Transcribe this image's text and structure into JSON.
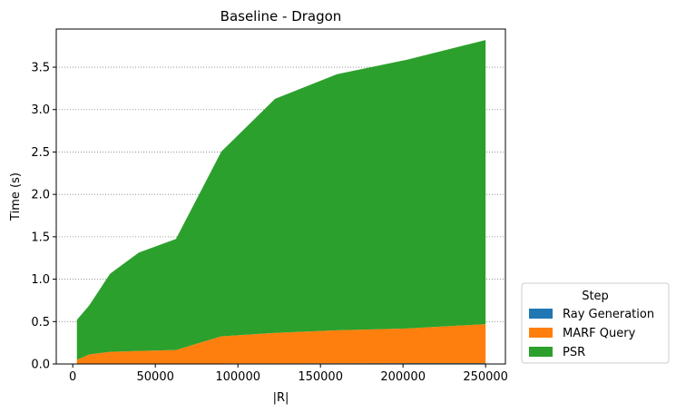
{
  "chart_data": {
    "type": "area",
    "stacked": true,
    "title": "Baseline - Dragon",
    "xlabel": "|R|",
    "ylabel": "Time (s)",
    "xlim": [
      -10000,
      262000
    ],
    "ylim": [
      0,
      3.95
    ],
    "xticks": [
      0,
      50000,
      100000,
      150000,
      200000,
      250000
    ],
    "yticks": [
      0.0,
      0.5,
      1.0,
      1.5,
      2.0,
      2.5,
      3.0,
      3.5
    ],
    "xtick_labels": [
      "0",
      "50000",
      "100000",
      "150000",
      "200000",
      "250000"
    ],
    "ytick_labels": [
      "0.0",
      "0.5",
      "1.0",
      "1.5",
      "2.0",
      "2.5",
      "3.0",
      "3.5"
    ],
    "grid": "y-dotted",
    "legend_position": "lower-right-outside",
    "legend_title": "Step",
    "x": [
      2500,
      10000,
      22500,
      40000,
      62500,
      90000,
      122500,
      160000,
      202500,
      250000
    ],
    "series": [
      {
        "name": "Ray Generation",
        "color": "#1f77b4",
        "values": [
          0.0,
          0.002,
          0.003,
          0.004,
          0.005,
          0.006,
          0.007,
          0.008,
          0.009,
          0.01
        ]
      },
      {
        "name": "MARF Query",
        "color": "#ff7f0e",
        "values": [
          0.05,
          0.11,
          0.14,
          0.15,
          0.16,
          0.32,
          0.36,
          0.39,
          0.41,
          0.46
        ]
      },
      {
        "name": "PSR",
        "color": "#2ca02c",
        "values": [
          0.47,
          0.58,
          0.92,
          1.16,
          1.31,
          2.18,
          2.76,
          3.02,
          3.17,
          3.35
        ]
      }
    ]
  }
}
